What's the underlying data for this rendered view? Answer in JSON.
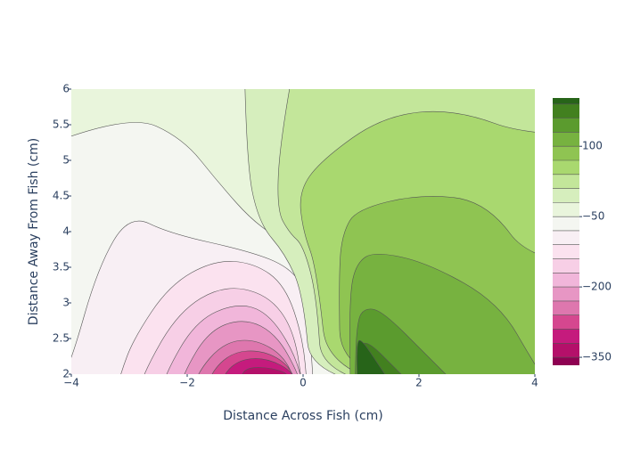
{
  "chart_data": {
    "type": "contour",
    "x_label": "Distance Across Fish (cm)",
    "y_label": "Distance Away From Fish (cm)",
    "xlim": [
      -4,
      4
    ],
    "xticks": [
      {
        "value": -4,
        "label": "−4"
      },
      {
        "value": -2,
        "label": "−2"
      },
      0,
      2,
      4
    ],
    "ylim": [
      2,
      6
    ],
    "yticks": [
      2,
      2.5,
      3,
      3.5,
      4,
      4.5,
      5,
      5.5,
      6
    ],
    "contours": {
      "start": -350,
      "end": 190,
      "size": 30
    },
    "zlim": [
      -367,
      203
    ],
    "colorbar_ticks": [
      {
        "value": -350,
        "label": "−350"
      },
      {
        "value": -200,
        "label": "−200"
      },
      {
        "value": -50,
        "label": "−50"
      },
      100
    ],
    "colorscale": [
      "#8e0152",
      "#b4106a",
      "#c51b7d",
      "#d5478f",
      "#de77ae",
      "#e796c4",
      "#f1b6da",
      "#f7cfe6",
      "#fbe2ef",
      "#f8eff4",
      "#f4f6f1",
      "#e9f5dc",
      "#d6eebd",
      "#c3e69a",
      "#a9d86f",
      "#8fc452",
      "#77b240",
      "#5b9b2e",
      "#42801f",
      "#276419"
    ]
  }
}
